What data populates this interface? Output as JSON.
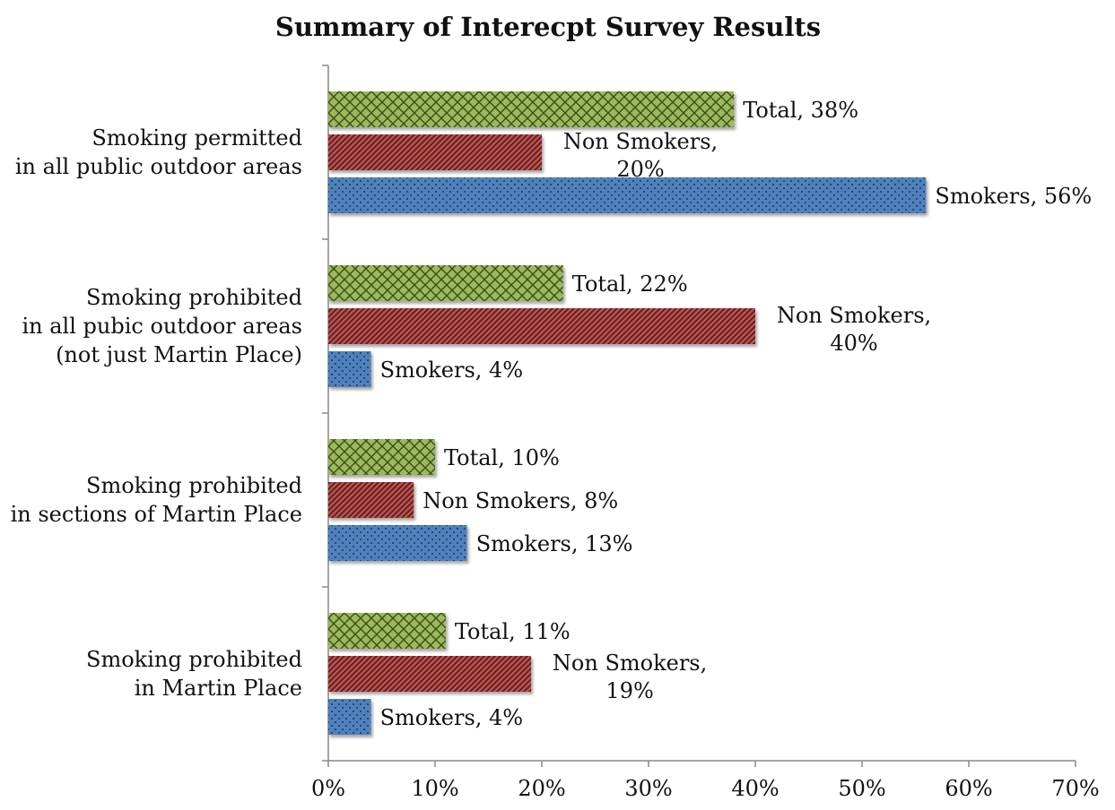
{
  "chart_data": {
    "type": "bar",
    "orientation": "horizontal",
    "title": "Summary of Interecpt Survey Results",
    "categories": [
      [
        "Smoking permitted",
        "in all public outdoor areas"
      ],
      [
        "Smoking prohibited",
        "in all pubic outdoor areas",
        "(not just Martin Place)"
      ],
      [
        "Smoking prohibited",
        "in sections of Martin Place"
      ],
      [
        "Smoking prohibited",
        "in Martin Place"
      ]
    ],
    "series": [
      {
        "name": "Total",
        "color": "#9BBB59",
        "pattern": "crosshatch",
        "values": [
          38,
          22,
          10,
          11
        ],
        "labels": [
          [
            "Total, 38%"
          ],
          [
            "Total, 22%"
          ],
          [
            "Total, 10%"
          ],
          [
            "Total, 11%"
          ]
        ]
      },
      {
        "name": "Non Smokers",
        "color": "#C0504D",
        "pattern": "diagonal-stripes",
        "values": [
          20,
          40,
          8,
          19
        ],
        "labels": [
          [
            "Non Smokers,",
            "20%"
          ],
          [
            "Non Smokers,",
            "40%"
          ],
          [
            "Non Smokers, 8%"
          ],
          [
            "Non Smokers,",
            "19%"
          ]
        ]
      },
      {
        "name": "Smokers",
        "color": "#4F81BD",
        "pattern": "dots",
        "values": [
          56,
          4,
          13,
          4
        ],
        "labels": [
          [
            "Smokers, 56%"
          ],
          [
            "Smokers, 4%"
          ],
          [
            "Smokers, 13%"
          ],
          [
            "Smokers, 4%"
          ]
        ]
      }
    ],
    "xlim": [
      0,
      70
    ],
    "xticks": [
      0,
      10,
      20,
      30,
      40,
      50,
      60,
      70
    ],
    "xtick_labels": [
      "0%",
      "10%",
      "20%",
      "30%",
      "40%",
      "50%",
      "60%",
      "70%"
    ],
    "xlabel": "",
    "ylabel": "",
    "grid": false,
    "legend": false
  }
}
